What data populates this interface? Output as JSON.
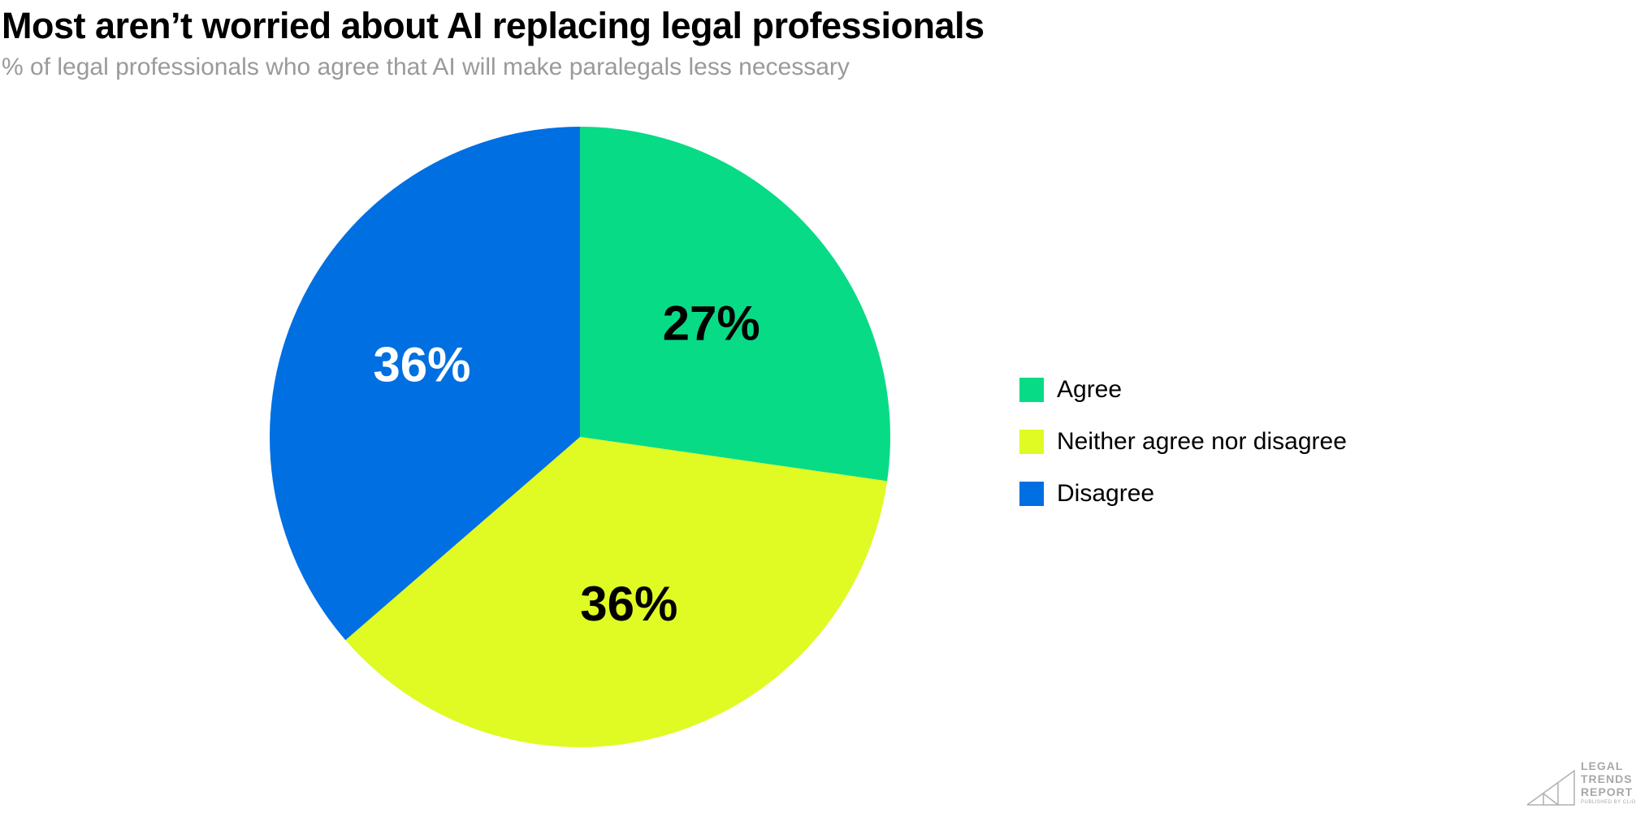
{
  "chart_data": {
    "type": "pie",
    "title": "Most aren’t worried about AI replacing legal professionals",
    "subtitle": "% of legal professionals who agree that AI will make paralegals less necessary",
    "slices": [
      {
        "label": "Agree",
        "value": 27,
        "data_label": "27%",
        "color": "#08db86",
        "label_color": "#000000"
      },
      {
        "label": "Neither agree nor disagree",
        "value": 36,
        "data_label": "36%",
        "color": "#e0fa24",
        "label_color": "#000000"
      },
      {
        "label": "Disagree",
        "value": 36,
        "data_label": "36%",
        "color": "#006fe1",
        "label_color": "#ffffff"
      }
    ],
    "legend_position": "right"
  },
  "logo": {
    "text_lines": [
      "LEGAL",
      "TRENDS",
      "REPORT"
    ],
    "subtext": "PUBLISHED BY CLIO"
  }
}
